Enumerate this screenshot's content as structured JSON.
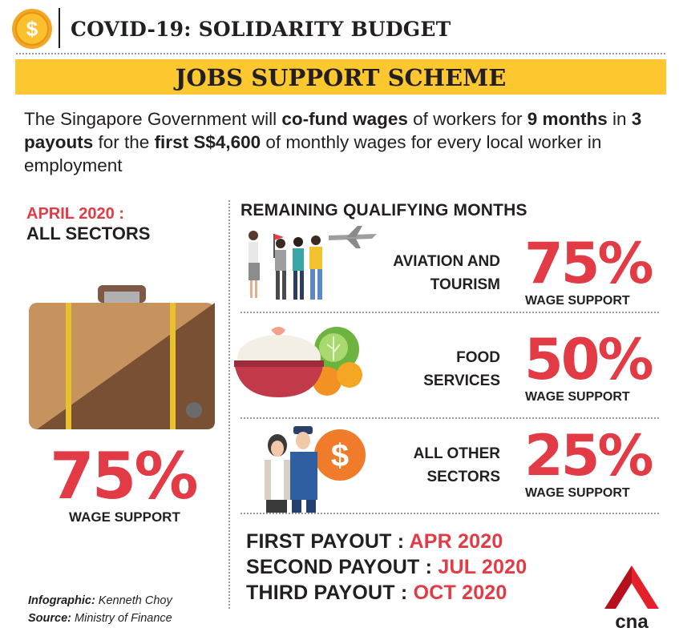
{
  "header": {
    "title": "COVID-19: SOLIDARITY BUDGET",
    "coin_symbol": "$"
  },
  "banner": {
    "title": "JOBS SUPPORT SCHEME"
  },
  "intro": {
    "p1": "The Singapore Government will ",
    "b1": "co-fund wages",
    "p2": " of workers for ",
    "b2": "9 months",
    "p3": " in ",
    "b3": "3 payouts",
    "p4": " for the ",
    "b4": "first S$4,600",
    "p5": " of monthly wages for every local worker in employment"
  },
  "left": {
    "date": "APRIL 2020 :",
    "sector": "ALL SECTORS",
    "percent": "75%",
    "wage_label": "WAGE SUPPORT"
  },
  "remaining": {
    "title": "REMAINING QUALIFYING MONTHS",
    "rows": [
      {
        "line1": "AVIATION AND",
        "line2": "TOURISM",
        "percent": "75%",
        "wage_label": "WAGE SUPPORT"
      },
      {
        "line1": "FOOD",
        "line2": "SERVICES",
        "percent": "50%",
        "wage_label": "WAGE SUPPORT"
      },
      {
        "line1": "ALL OTHER",
        "line2": "SECTORS",
        "percent": "25%",
        "wage_label": "WAGE SUPPORT"
      }
    ]
  },
  "payouts": [
    {
      "label": "FIRST PAYOUT : ",
      "date": "APR 2020"
    },
    {
      "label": "SECOND PAYOUT : ",
      "date": "JUL 2020"
    },
    {
      "label": "THIRD PAYOUT : ",
      "date": "OCT 2020"
    }
  ],
  "credits": {
    "infographic_label": "Infographic:",
    "infographic_value": " Kenneth Choy",
    "source_label": "Source:",
    "source_value": " Ministry of Finance"
  },
  "logo": {
    "text": "cna"
  },
  "colors": {
    "accent_red": "#e23b45",
    "banner_yellow": "#fdc72f",
    "coin_gold": "#f5a623"
  }
}
